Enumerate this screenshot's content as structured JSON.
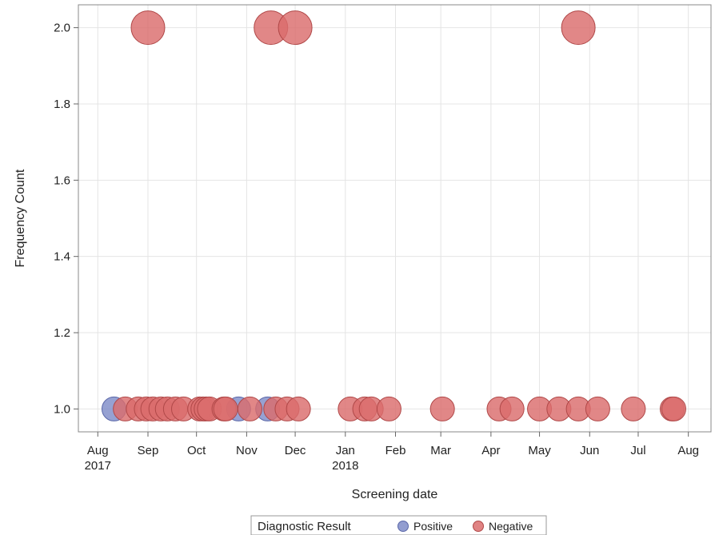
{
  "chart_data": {
    "type": "scatter",
    "xlabel": "Screening date",
    "ylabel": "Frequency Count",
    "x_range": [
      "2017-07-20",
      "2018-08-15"
    ],
    "ylim": [
      0.94,
      2.06
    ],
    "y_ticks": [
      1.0,
      1.2,
      1.4,
      1.6,
      1.8,
      2.0
    ],
    "y_tick_labels": [
      "1.0",
      "1.2",
      "1.4",
      "1.6",
      "1.8",
      "2.0"
    ],
    "x_ticks": [
      {
        "date": "2017-08-01",
        "label": "Aug",
        "year": "2017"
      },
      {
        "date": "2017-09-01",
        "label": "Sep",
        "year": ""
      },
      {
        "date": "2017-10-01",
        "label": "Oct",
        "year": ""
      },
      {
        "date": "2017-11-01",
        "label": "Nov",
        "year": ""
      },
      {
        "date": "2017-12-01",
        "label": "Dec",
        "year": ""
      },
      {
        "date": "2018-01-01",
        "label": "Jan",
        "year": "2018"
      },
      {
        "date": "2018-02-01",
        "label": "Feb",
        "year": ""
      },
      {
        "date": "2018-03-01",
        "label": "Mar",
        "year": ""
      },
      {
        "date": "2018-04-01",
        "label": "Apr",
        "year": ""
      },
      {
        "date": "2018-05-01",
        "label": "May",
        "year": ""
      },
      {
        "date": "2018-06-01",
        "label": "Jun",
        "year": ""
      },
      {
        "date": "2018-07-01",
        "label": "Jul",
        "year": ""
      },
      {
        "date": "2018-08-01",
        "label": "Aug",
        "year": ""
      }
    ],
    "grid": true,
    "legend": {
      "position": "bottom",
      "title": "Diagnostic Result",
      "entries": [
        "Positive",
        "Negative"
      ]
    },
    "colors": {
      "Positive": "#7f8cc8",
      "Negative": "#db6d6d",
      "Positive_stroke": "#5a67a8",
      "Negative_stroke": "#b04848"
    },
    "series": [
      {
        "name": "Positive",
        "points": [
          {
            "x": "2017-08-11",
            "y": 1
          },
          {
            "x": "2017-10-27",
            "y": 1
          },
          {
            "x": "2017-11-14",
            "y": 1
          }
        ]
      },
      {
        "name": "Negative",
        "points": [
          {
            "x": "2017-09-01",
            "y": 2
          },
          {
            "x": "2017-11-16",
            "y": 2
          },
          {
            "x": "2017-12-01",
            "y": 2
          },
          {
            "x": "2018-05-25",
            "y": 2
          },
          {
            "x": "2017-08-18",
            "y": 1
          },
          {
            "x": "2017-08-26",
            "y": 1
          },
          {
            "x": "2017-08-31",
            "y": 1
          },
          {
            "x": "2017-09-04",
            "y": 1
          },
          {
            "x": "2017-09-09",
            "y": 1
          },
          {
            "x": "2017-09-13",
            "y": 1
          },
          {
            "x": "2017-09-18",
            "y": 1
          },
          {
            "x": "2017-09-23",
            "y": 1
          },
          {
            "x": "2017-10-03",
            "y": 1
          },
          {
            "x": "2017-10-05",
            "y": 1
          },
          {
            "x": "2017-10-07",
            "y": 1
          },
          {
            "x": "2017-10-09",
            "y": 1
          },
          {
            "x": "2017-10-18",
            "y": 1
          },
          {
            "x": "2017-10-19",
            "y": 1
          },
          {
            "x": "2017-11-03",
            "y": 1
          },
          {
            "x": "2017-11-19",
            "y": 1
          },
          {
            "x": "2017-11-26",
            "y": 1
          },
          {
            "x": "2017-12-03",
            "y": 1
          },
          {
            "x": "2018-01-04",
            "y": 1
          },
          {
            "x": "2018-01-13",
            "y": 1
          },
          {
            "x": "2018-01-17",
            "y": 1
          },
          {
            "x": "2018-01-28",
            "y": 1
          },
          {
            "x": "2018-03-02",
            "y": 1
          },
          {
            "x": "2018-04-06",
            "y": 1
          },
          {
            "x": "2018-04-14",
            "y": 1
          },
          {
            "x": "2018-05-01",
            "y": 1
          },
          {
            "x": "2018-05-13",
            "y": 1
          },
          {
            "x": "2018-05-25",
            "y": 1
          },
          {
            "x": "2018-06-06",
            "y": 1
          },
          {
            "x": "2018-06-28",
            "y": 1
          },
          {
            "x": "2018-07-22",
            "y": 1
          },
          {
            "x": "2018-07-23",
            "y": 1
          }
        ]
      }
    ]
  }
}
